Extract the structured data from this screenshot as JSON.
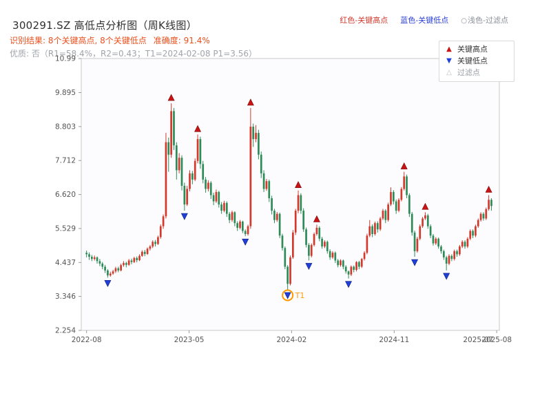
{
  "header": {
    "title": "300291.SZ 高低点分析图（周K线图）",
    "legend": [
      {
        "label": "红色-关键高点",
        "color": "#d0392c"
      },
      {
        "label": "蓝色-关键低点",
        "color": "#2a3fd4"
      },
      {
        "prefix": "○",
        "label": "浅色-过滤点",
        "color": "#8a8f98"
      }
    ],
    "result_text": "识别结果: 8个关键高点, 8个关键低点",
    "accuracy_text": "准确度: 91.4%",
    "quality_text": "优质: 否（R1=58.4%，R2=0.43；T1=2024-02-08 P1=3.56）"
  },
  "plot_legend": {
    "items": [
      "关键高点",
      "关键低点",
      "过滤点"
    ]
  },
  "chart_data": {
    "type": "candlestick",
    "title": "300291.SZ 高低点分析图（周K线图）",
    "x_tick_labels": [
      "2022-08",
      "2023-05",
      "2024-02",
      "2024-11",
      "2025-08"
    ],
    "x_tick_weeks": [
      0,
      38.75,
      77.5,
      116.25,
      155
    ],
    "extra_x_label": {
      "week": 148,
      "text": "2025-07"
    },
    "y_tick_labels": [
      "2.254",
      "3.346",
      "4.437",
      "5.529",
      "6.620",
      "7.712",
      "8.803",
      "9.895",
      "10.99"
    ],
    "ylim": [
      2.254,
      10.99
    ],
    "grid": false,
    "legend_position": "top-right",
    "colors": {
      "up": "#d0392c",
      "down": "#2e8b57",
      "high_marker": "#c81414",
      "low_marker": "#1f3fd8",
      "filtered": "#b9bdc4",
      "t1": "#ff9800"
    },
    "candles": [
      [
        4.75,
        4.82,
        4.6,
        4.7
      ],
      [
        4.7,
        4.76,
        4.52,
        4.62
      ],
      [
        4.62,
        4.68,
        4.48,
        4.55
      ],
      [
        4.55,
        4.66,
        4.5,
        4.6
      ],
      [
        4.6,
        4.63,
        4.4,
        4.48
      ],
      [
        4.48,
        4.55,
        4.32,
        4.4
      ],
      [
        4.4,
        4.45,
        4.22,
        4.3
      ],
      [
        4.3,
        4.36,
        4.1,
        4.18
      ],
      [
        4.18,
        4.22,
        3.95,
        4.02
      ],
      [
        4.02,
        4.14,
        3.98,
        4.08
      ],
      [
        4.08,
        4.2,
        4.04,
        4.15
      ],
      [
        4.15,
        4.3,
        4.1,
        4.25
      ],
      [
        4.25,
        4.3,
        4.12,
        4.18
      ],
      [
        4.18,
        4.4,
        4.15,
        4.35
      ],
      [
        4.35,
        4.48,
        4.3,
        4.42
      ],
      [
        4.42,
        4.46,
        4.28,
        4.36
      ],
      [
        4.36,
        4.55,
        4.33,
        4.5
      ],
      [
        4.5,
        4.56,
        4.38,
        4.45
      ],
      [
        4.45,
        4.62,
        4.42,
        4.58
      ],
      [
        4.58,
        4.63,
        4.44,
        4.51
      ],
      [
        4.51,
        4.7,
        4.48,
        4.65
      ],
      [
        4.65,
        4.83,
        4.62,
        4.78
      ],
      [
        4.78,
        4.84,
        4.64,
        4.71
      ],
      [
        4.71,
        4.92,
        4.68,
        4.88
      ],
      [
        4.88,
        5.0,
        4.82,
        4.95
      ],
      [
        4.95,
        5.15,
        4.9,
        5.1
      ],
      [
        5.1,
        5.16,
        4.95,
        5.03
      ],
      [
        5.03,
        5.3,
        5.0,
        5.25
      ],
      [
        5.25,
        5.66,
        5.2,
        5.6
      ],
      [
        5.6,
        5.98,
        5.52,
        5.92
      ],
      [
        5.92,
        8.6,
        5.85,
        8.3
      ],
      [
        8.3,
        8.45,
        7.35,
        7.9
      ],
      [
        7.9,
        9.55,
        7.8,
        9.3
      ],
      [
        9.3,
        9.4,
        8.05,
        8.2
      ],
      [
        8.2,
        8.3,
        7.1,
        7.4
      ],
      [
        7.4,
        7.95,
        7.3,
        7.8
      ],
      [
        7.8,
        7.88,
        6.75,
        6.9
      ],
      [
        6.9,
        7.0,
        6.1,
        6.3
      ],
      [
        6.3,
        6.9,
        6.25,
        6.8
      ],
      [
        6.8,
        7.4,
        6.72,
        7.3
      ],
      [
        7.3,
        7.38,
        6.95,
        7.1
      ],
      [
        7.1,
        7.78,
        7.05,
        7.7
      ],
      [
        7.7,
        8.55,
        7.62,
        8.4
      ],
      [
        8.4,
        8.48,
        7.45,
        7.6
      ],
      [
        7.6,
        7.7,
        6.98,
        7.1
      ],
      [
        7.1,
        7.18,
        6.68,
        6.8
      ],
      [
        6.8,
        7.08,
        6.72,
        7.0
      ],
      [
        7.0,
        7.05,
        6.48,
        6.6
      ],
      [
        6.6,
        6.68,
        6.28,
        6.4
      ],
      [
        6.4,
        6.78,
        6.35,
        6.7
      ],
      [
        6.7,
        6.74,
        6.2,
        6.3
      ],
      [
        6.3,
        6.38,
        6.0,
        6.1
      ],
      [
        6.1,
        6.42,
        6.05,
        6.35
      ],
      [
        6.35,
        6.4,
        5.9,
        6.0
      ],
      [
        6.0,
        6.06,
        5.7,
        5.8
      ],
      [
        5.8,
        6.1,
        5.74,
        6.05
      ],
      [
        6.05,
        6.08,
        5.6,
        5.7
      ],
      [
        5.7,
        5.76,
        5.45,
        5.55
      ],
      [
        5.55,
        5.8,
        5.5,
        5.75
      ],
      [
        5.75,
        5.78,
        5.38,
        5.45
      ],
      [
        5.45,
        5.5,
        5.28,
        5.35
      ],
      [
        5.35,
        5.65,
        5.3,
        5.6
      ],
      [
        5.6,
        9.4,
        5.52,
        8.8
      ],
      [
        8.8,
        8.9,
        8.15,
        8.4
      ],
      [
        8.4,
        8.85,
        8.3,
        8.6
      ],
      [
        8.6,
        8.7,
        7.75,
        7.9
      ],
      [
        7.9,
        8.0,
        7.15,
        7.3
      ],
      [
        7.3,
        7.4,
        6.7,
        6.8
      ],
      [
        6.8,
        7.12,
        6.74,
        7.05
      ],
      [
        7.05,
        7.1,
        6.38,
        6.5
      ],
      [
        6.5,
        6.58,
        5.98,
        6.1
      ],
      [
        6.1,
        6.16,
        5.7,
        5.8
      ],
      [
        5.8,
        6.06,
        5.74,
        6.0
      ],
      [
        6.0,
        6.04,
        5.22,
        5.3
      ],
      [
        5.3,
        5.36,
        4.82,
        4.9
      ],
      [
        4.9,
        4.95,
        4.22,
        4.3
      ],
      [
        4.3,
        4.35,
        3.56,
        3.75
      ],
      [
        3.75,
        4.66,
        3.7,
        4.6
      ],
      [
        4.6,
        5.48,
        4.55,
        5.4
      ],
      [
        5.4,
        6.16,
        5.32,
        6.1
      ],
      [
        6.1,
        6.75,
        6.02,
        6.6
      ],
      [
        6.6,
        6.66,
        6.0,
        6.1
      ],
      [
        6.1,
        6.18,
        5.42,
        5.5
      ],
      [
        5.5,
        5.56,
        4.92,
        5.0
      ],
      [
        5.0,
        5.06,
        4.5,
        4.65
      ],
      [
        4.65,
        5.05,
        4.6,
        5.0
      ],
      [
        5.0,
        5.4,
        4.95,
        5.35
      ],
      [
        5.35,
        5.65,
        5.3,
        5.55
      ],
      [
        5.55,
        5.6,
        5.12,
        5.2
      ],
      [
        5.2,
        5.26,
        4.88,
        4.95
      ],
      [
        4.95,
        5.15,
        4.9,
        5.1
      ],
      [
        5.1,
        5.14,
        4.72,
        4.8
      ],
      [
        4.8,
        4.86,
        4.52,
        4.6
      ],
      [
        4.6,
        4.8,
        4.55,
        4.75
      ],
      [
        4.75,
        4.79,
        4.42,
        4.5
      ],
      [
        4.5,
        4.55,
        4.28,
        4.35
      ],
      [
        4.35,
        4.54,
        4.3,
        4.5
      ],
      [
        4.5,
        4.53,
        4.22,
        4.3
      ],
      [
        4.3,
        4.35,
        4.08,
        4.15
      ],
      [
        4.15,
        4.18,
        3.92,
        4.05
      ],
      [
        4.05,
        4.34,
        4.0,
        4.3
      ],
      [
        4.3,
        4.34,
        4.12,
        4.2
      ],
      [
        4.2,
        4.48,
        4.15,
        4.45
      ],
      [
        4.45,
        4.49,
        4.22,
        4.3
      ],
      [
        4.3,
        4.58,
        4.26,
        4.55
      ],
      [
        4.55,
        4.8,
        4.5,
        4.75
      ],
      [
        4.75,
        5.36,
        4.7,
        5.3
      ],
      [
        5.3,
        5.8,
        5.25,
        5.6
      ],
      [
        5.6,
        5.66,
        5.25,
        5.35
      ],
      [
        5.35,
        5.75,
        5.3,
        5.7
      ],
      [
        5.7,
        5.76,
        5.4,
        5.5
      ],
      [
        5.5,
        5.9,
        5.45,
        5.85
      ],
      [
        5.85,
        6.16,
        5.8,
        6.1
      ],
      [
        6.1,
        6.15,
        5.7,
        5.8
      ],
      [
        5.8,
        6.36,
        5.75,
        6.3
      ],
      [
        6.3,
        6.85,
        6.25,
        6.7
      ],
      [
        6.7,
        6.76,
        6.3,
        6.4
      ],
      [
        6.4,
        6.46,
        6.0,
        6.1
      ],
      [
        6.1,
        6.5,
        6.05,
        6.45
      ],
      [
        6.45,
        6.86,
        6.4,
        6.8
      ],
      [
        6.8,
        7.35,
        6.75,
        7.2
      ],
      [
        7.2,
        7.26,
        6.5,
        6.6
      ],
      [
        6.6,
        6.66,
        5.9,
        6.0
      ],
      [
        6.0,
        6.06,
        5.3,
        5.4
      ],
      [
        5.4,
        5.46,
        4.62,
        4.8
      ],
      [
        4.8,
        5.26,
        4.75,
        5.2
      ],
      [
        5.2,
        5.66,
        5.15,
        5.6
      ],
      [
        5.6,
        5.9,
        5.55,
        5.85
      ],
      [
        5.85,
        6.05,
        5.8,
        5.95
      ],
      [
        5.95,
        6.0,
        5.52,
        5.6
      ],
      [
        5.6,
        5.66,
        5.22,
        5.3
      ],
      [
        5.3,
        5.35,
        4.98,
        5.05
      ],
      [
        5.05,
        5.25,
        5.0,
        5.2
      ],
      [
        5.2,
        5.24,
        4.88,
        4.95
      ],
      [
        4.95,
        5.0,
        4.72,
        4.8
      ],
      [
        4.8,
        4.85,
        4.52,
        4.6
      ],
      [
        4.6,
        4.65,
        4.18,
        4.4
      ],
      [
        4.4,
        4.7,
        4.35,
        4.65
      ],
      [
        4.65,
        4.7,
        4.48,
        4.55
      ],
      [
        4.55,
        4.85,
        4.5,
        4.8
      ],
      [
        4.8,
        4.85,
        4.62,
        4.7
      ],
      [
        4.7,
        5.0,
        4.65,
        4.95
      ],
      [
        4.95,
        5.15,
        4.9,
        5.1
      ],
      [
        5.1,
        5.15,
        4.88,
        4.95
      ],
      [
        4.95,
        5.25,
        4.9,
        5.2
      ],
      [
        5.2,
        5.5,
        5.15,
        5.45
      ],
      [
        5.45,
        5.5,
        5.22,
        5.3
      ],
      [
        5.3,
        5.65,
        5.25,
        5.6
      ],
      [
        5.6,
        5.85,
        5.55,
        5.8
      ],
      [
        5.8,
        6.05,
        5.75,
        6.0
      ],
      [
        6.0,
        6.05,
        5.78,
        5.85
      ],
      [
        5.85,
        6.2,
        5.8,
        6.15
      ],
      [
        6.15,
        6.6,
        6.1,
        6.45
      ],
      [
        6.45,
        6.5,
        6.1,
        6.25
      ]
    ],
    "key_high_indices": [
      32,
      42,
      62,
      80,
      87,
      120,
      128,
      152
    ],
    "key_low_indices": [
      8,
      37,
      60,
      76,
      84,
      99,
      124,
      136
    ],
    "t1": {
      "index": 76,
      "label": "T1",
      "price": 3.56
    }
  }
}
